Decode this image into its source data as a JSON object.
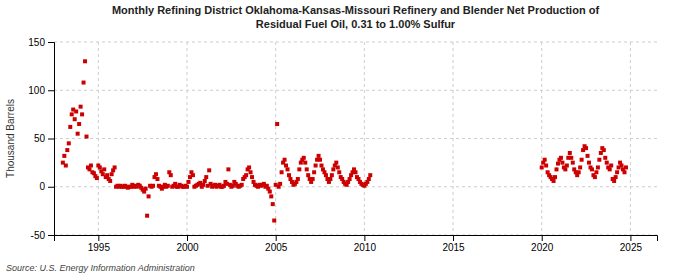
{
  "chart_data": {
    "type": "scatter",
    "title": "Monthly Refining District Oklahoma-Kansas-Missouri Refinery and Blender Net Production of\nResidual Fuel Oil, 0.31 to 1.00% Sulfur",
    "ylabel": "Thousand Barrels",
    "source": "Source: U.S. Energy Information Administration",
    "color": "#cc0000",
    "marker": "square",
    "grid": true,
    "xlim": [
      1992.5,
      2026.5
    ],
    "ylim": [
      -50,
      150
    ],
    "xticks": [
      1995,
      2000,
      2005,
      2010,
      2015,
      2020,
      2025
    ],
    "yticks": [
      -50,
      0,
      50,
      100,
      150
    ],
    "x": [
      1993.0,
      1993.083,
      1993.167,
      1993.25,
      1993.333,
      1993.417,
      1993.5,
      1993.583,
      1993.667,
      1993.75,
      1993.833,
      1993.917,
      1994.0,
      1994.083,
      1994.167,
      1994.25,
      1994.333,
      1994.417,
      1994.5,
      1994.583,
      1994.667,
      1994.75,
      1994.833,
      1994.917,
      1995.0,
      1995.083,
      1995.167,
      1995.25,
      1995.333,
      1995.417,
      1995.5,
      1995.583,
      1995.667,
      1995.75,
      1995.833,
      1995.917,
      1996.0,
      1996.083,
      1996.167,
      1996.25,
      1996.333,
      1996.417,
      1996.5,
      1996.583,
      1996.667,
      1996.75,
      1996.833,
      1996.917,
      1997.0,
      1997.083,
      1997.167,
      1997.25,
      1997.333,
      1997.417,
      1997.5,
      1997.583,
      1997.667,
      1997.75,
      1997.833,
      1997.917,
      1998.0,
      1998.083,
      1998.167,
      1998.25,
      1998.333,
      1998.417,
      1998.5,
      1998.583,
      1998.667,
      1998.75,
      1998.833,
      1998.917,
      1999.0,
      1999.083,
      1999.167,
      1999.25,
      1999.333,
      1999.417,
      1999.5,
      1999.583,
      1999.667,
      1999.75,
      1999.833,
      1999.917,
      2000.0,
      2000.083,
      2000.167,
      2000.25,
      2000.333,
      2000.417,
      2000.5,
      2000.583,
      2000.667,
      2000.75,
      2000.833,
      2000.917,
      2001.0,
      2001.083,
      2001.167,
      2001.25,
      2001.333,
      2001.417,
      2001.5,
      2001.583,
      2001.667,
      2001.75,
      2001.833,
      2001.917,
      2002.0,
      2002.083,
      2002.167,
      2002.25,
      2002.333,
      2002.417,
      2002.5,
      2002.583,
      2002.667,
      2002.75,
      2002.833,
      2002.917,
      2003.0,
      2003.083,
      2003.167,
      2003.25,
      2003.333,
      2003.417,
      2003.5,
      2003.583,
      2003.667,
      2003.75,
      2003.833,
      2003.917,
      2004.0,
      2004.083,
      2004.167,
      2004.25,
      2004.333,
      2004.417,
      2004.5,
      2004.583,
      2004.667,
      2004.75,
      2004.833,
      2004.917,
      2005.0,
      2005.083,
      2005.167,
      2005.25,
      2005.333,
      2005.417,
      2005.5,
      2005.583,
      2005.667,
      2005.75,
      2005.833,
      2005.917,
      2006.0,
      2006.083,
      2006.167,
      2006.25,
      2006.333,
      2006.417,
      2006.5,
      2006.583,
      2006.667,
      2006.75,
      2006.833,
      2006.917,
      2007.0,
      2007.083,
      2007.167,
      2007.25,
      2007.333,
      2007.417,
      2007.5,
      2007.583,
      2007.667,
      2007.75,
      2007.833,
      2007.917,
      2008.0,
      2008.083,
      2008.167,
      2008.25,
      2008.333,
      2008.417,
      2008.5,
      2008.583,
      2008.667,
      2008.75,
      2008.833,
      2008.917,
      2009.0,
      2009.083,
      2009.167,
      2009.25,
      2009.333,
      2009.417,
      2009.5,
      2009.583,
      2009.667,
      2009.75,
      2009.833,
      2009.917,
      2010.0,
      2010.083,
      2010.167,
      2010.25,
      2010.333,
      2020.0,
      2020.083,
      2020.167,
      2020.25,
      2020.333,
      2020.417,
      2020.5,
      2020.583,
      2020.667,
      2020.75,
      2020.833,
      2020.917,
      2021.0,
      2021.083,
      2021.167,
      2021.25,
      2021.333,
      2021.417,
      2021.5,
      2021.583,
      2021.667,
      2021.75,
      2021.833,
      2021.917,
      2022.0,
      2022.083,
      2022.167,
      2022.25,
      2022.333,
      2022.417,
      2022.5,
      2022.583,
      2022.667,
      2022.75,
      2022.833,
      2022.917,
      2023.0,
      2023.083,
      2023.167,
      2023.25,
      2023.333,
      2023.417,
      2023.5,
      2023.583,
      2023.667,
      2023.75,
      2023.833,
      2023.917,
      2024.0,
      2024.083,
      2024.167,
      2024.25,
      2024.333,
      2024.417,
      2024.5,
      2024.583,
      2024.667,
      2024.75
    ],
    "values": [
      25,
      32,
      22,
      38,
      45,
      62,
      75,
      80,
      70,
      78,
      55,
      65,
      83,
      75,
      108,
      130,
      52,
      20,
      18,
      22,
      15,
      14,
      11,
      9,
      22,
      20,
      16,
      13,
      18,
      10,
      12,
      8,
      6,
      13,
      17,
      20,
      0,
      1,
      0,
      1,
      0,
      0,
      1,
      0,
      -1,
      0,
      0,
      2,
      0,
      1,
      0,
      2,
      1,
      -1,
      -3,
      -5,
      -2,
      -30,
      -10,
      1,
      0,
      1,
      10,
      13,
      8,
      1,
      0,
      -2,
      0,
      2,
      0,
      1,
      15,
      12,
      0,
      1,
      3,
      0,
      0,
      2,
      1,
      0,
      0,
      1,
      0,
      5,
      10,
      15,
      12,
      0,
      1,
      2,
      3,
      4,
      0,
      2,
      6,
      10,
      1,
      17,
      3,
      0,
      1,
      2,
      0,
      1,
      2,
      0,
      0,
      1,
      5,
      3,
      18,
      2,
      0,
      1,
      5,
      3,
      1,
      0,
      1,
      2,
      8,
      10,
      12,
      18,
      20,
      15,
      10,
      5,
      2,
      1,
      0,
      2,
      1,
      2,
      3,
      0,
      1,
      -2,
      -5,
      -10,
      -18,
      -35,
      2,
      65,
      0,
      3,
      15,
      25,
      28,
      22,
      18,
      12,
      8,
      5,
      2,
      3,
      5,
      8,
      18,
      25,
      28,
      30,
      25,
      18,
      12,
      8,
      5,
      8,
      15,
      22,
      28,
      32,
      28,
      22,
      18,
      15,
      12,
      8,
      5,
      8,
      12,
      18,
      22,
      25,
      20,
      15,
      10,
      8,
      5,
      3,
      2,
      5,
      8,
      12,
      15,
      18,
      15,
      10,
      8,
      5,
      3,
      2,
      1,
      3,
      5,
      8,
      12,
      20,
      25,
      28,
      22,
      15,
      12,
      10,
      8,
      6,
      10,
      18,
      24,
      28,
      30,
      25,
      20,
      18,
      22,
      30,
      35,
      30,
      25,
      18,
      15,
      12,
      15,
      20,
      28,
      38,
      42,
      40,
      32,
      25,
      20,
      18,
      12,
      10,
      15,
      20,
      28,
      35,
      40,
      38,
      30,
      25,
      20,
      18,
      22,
      8,
      6,
      10,
      15,
      20,
      25,
      22,
      18,
      15,
      20
    ]
  }
}
